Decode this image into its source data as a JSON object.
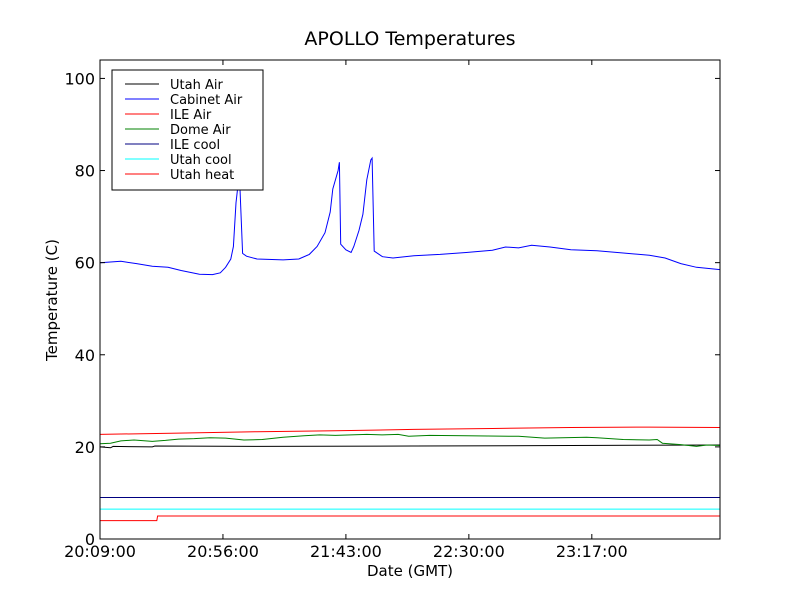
{
  "chart_data": {
    "type": "line",
    "title": "APOLLO Temperatures",
    "xlabel": "Date (GMT)",
    "ylabel": "Temperature (C)",
    "x_unit": "minutes since 20:09:00",
    "xlim": [
      0,
      237
    ],
    "ylim": [
      0,
      104
    ],
    "x_ticks": [
      {
        "value": 0,
        "label": "20:09:00"
      },
      {
        "value": 47,
        "label": "20:56:00"
      },
      {
        "value": 94,
        "label": "21:43:00"
      },
      {
        "value": 141,
        "label": "22:30:00"
      },
      {
        "value": 188,
        "label": "23:17:00"
      }
    ],
    "y_ticks": [
      0,
      20,
      40,
      60,
      80,
      100
    ],
    "grid": false,
    "legend_position": "top-left",
    "series": [
      {
        "name": "Utah Air",
        "color": "#000000",
        "points": [
          [
            0,
            20.0
          ],
          [
            4,
            19.8
          ],
          [
            5,
            20.1
          ],
          [
            20,
            20.0
          ],
          [
            21,
            20.2
          ],
          [
            60,
            20.1
          ],
          [
            120,
            20.2
          ],
          [
            180,
            20.3
          ],
          [
            237,
            20.4
          ]
        ]
      },
      {
        "name": "Cabinet Air",
        "color": "#0000ff",
        "points": [
          [
            0,
            60.0
          ],
          [
            8,
            60.3
          ],
          [
            14,
            59.8
          ],
          [
            20,
            59.2
          ],
          [
            26,
            59.0
          ],
          [
            31,
            58.3
          ],
          [
            38,
            57.5
          ],
          [
            43,
            57.4
          ],
          [
            46,
            57.8
          ],
          [
            48,
            59.0
          ],
          [
            50,
            60.8
          ],
          [
            51,
            63.5
          ],
          [
            52,
            73.0
          ],
          [
            53,
            78.0
          ],
          [
            53.5,
            76.0
          ],
          [
            54.5,
            62.0
          ],
          [
            56,
            61.4
          ],
          [
            60,
            60.8
          ],
          [
            70,
            60.6
          ],
          [
            76,
            60.8
          ],
          [
            80,
            61.8
          ],
          [
            83,
            63.5
          ],
          [
            86,
            66.5
          ],
          [
            88,
            71.0
          ],
          [
            89,
            76.0
          ],
          [
            91,
            80.0
          ],
          [
            91.5,
            81.8
          ],
          [
            92,
            64.0
          ],
          [
            94,
            62.8
          ],
          [
            96,
            62.2
          ],
          [
            97,
            63.5
          ],
          [
            99,
            67.0
          ],
          [
            100.5,
            70.5
          ],
          [
            102,
            78.0
          ],
          [
            103.5,
            82.3
          ],
          [
            104,
            82.7
          ],
          [
            104.8,
            62.5
          ],
          [
            108,
            61.3
          ],
          [
            112,
            61.0
          ],
          [
            120,
            61.5
          ],
          [
            130,
            61.8
          ],
          [
            140,
            62.2
          ],
          [
            150,
            62.7
          ],
          [
            155,
            63.4
          ],
          [
            160,
            63.2
          ],
          [
            165,
            63.8
          ],
          [
            172,
            63.4
          ],
          [
            180,
            62.8
          ],
          [
            190,
            62.6
          ],
          [
            200,
            62.1
          ],
          [
            210,
            61.6
          ],
          [
            216,
            61.0
          ],
          [
            222,
            59.8
          ],
          [
            228,
            59.0
          ],
          [
            237,
            58.5
          ]
        ]
      },
      {
        "name": "ILE Air",
        "color": "#ff0000",
        "points": [
          [
            0,
            22.7
          ],
          [
            30,
            23.0
          ],
          [
            60,
            23.3
          ],
          [
            90,
            23.5
          ],
          [
            120,
            23.8
          ],
          [
            150,
            24.0
          ],
          [
            180,
            24.2
          ],
          [
            210,
            24.3
          ],
          [
            237,
            24.2
          ]
        ]
      },
      {
        "name": "Dome Air",
        "color": "#008000",
        "points": [
          [
            0,
            20.7
          ],
          [
            4,
            20.8
          ],
          [
            8,
            21.3
          ],
          [
            13,
            21.5
          ],
          [
            20,
            21.2
          ],
          [
            25,
            21.4
          ],
          [
            30,
            21.7
          ],
          [
            36,
            21.8
          ],
          [
            42,
            22.0
          ],
          [
            48,
            21.9
          ],
          [
            55,
            21.5
          ],
          [
            62,
            21.6
          ],
          [
            70,
            22.1
          ],
          [
            78,
            22.4
          ],
          [
            84,
            22.6
          ],
          [
            90,
            22.5
          ],
          [
            96,
            22.6
          ],
          [
            102,
            22.7
          ],
          [
            108,
            22.6
          ],
          [
            114,
            22.7
          ],
          [
            118,
            22.3
          ],
          [
            126,
            22.5
          ],
          [
            140,
            22.4
          ],
          [
            160,
            22.3
          ],
          [
            170,
            21.9
          ],
          [
            186,
            22.1
          ],
          [
            190,
            22.0
          ],
          [
            200,
            21.6
          ],
          [
            210,
            21.5
          ],
          [
            213,
            21.6
          ],
          [
            215,
            20.8
          ],
          [
            222,
            20.5
          ],
          [
            228,
            20.1
          ],
          [
            232,
            20.4
          ],
          [
            237,
            20.3
          ]
        ]
      },
      {
        "name": "ILE cool",
        "color": "#000080",
        "points": [
          [
            0,
            9.0
          ],
          [
            237,
            9.0
          ]
        ]
      },
      {
        "name": "Utah cool",
        "color": "#00ffff",
        "points": [
          [
            0,
            6.5
          ],
          [
            237,
            6.5
          ]
        ]
      },
      {
        "name": "Utah heat",
        "color": "#ff0000",
        "points": [
          [
            0,
            4.0
          ],
          [
            21.7,
            4.0
          ],
          [
            22,
            5.0
          ],
          [
            237,
            5.0
          ]
        ]
      }
    ]
  }
}
